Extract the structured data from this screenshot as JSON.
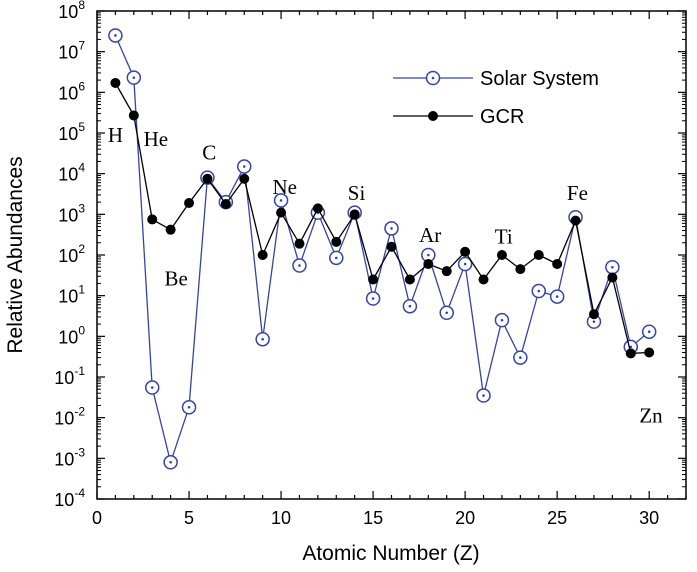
{
  "chart_data": {
    "type": "line",
    "xlabel": "Atomic Number (Z)",
    "ylabel": "Relative Abundances",
    "xlim": [
      0,
      32
    ],
    "ylim_exponents": [
      -4,
      8
    ],
    "y_scale": "log",
    "x_ticks": [
      0,
      5,
      10,
      15,
      20,
      25,
      30
    ],
    "x_minor_step": 1,
    "y_tick_exponents": [
      -4,
      -3,
      -2,
      -1,
      0,
      1,
      2,
      3,
      4,
      5,
      6,
      7,
      8
    ],
    "y_tick_base": "10",
    "grid": false,
    "legend_position": "top-right",
    "x": [
      1,
      2,
      3,
      4,
      5,
      6,
      7,
      8,
      9,
      10,
      11,
      12,
      13,
      14,
      15,
      16,
      17,
      18,
      19,
      20,
      21,
      22,
      23,
      24,
      25,
      26,
      27,
      28,
      29,
      30
    ],
    "series": [
      {
        "name": "Solar System",
        "color": "#3344aa",
        "marker": "open-circle",
        "values": [
          25000000,
          2300000,
          0.055,
          0.0008,
          0.018,
          8000,
          2000,
          15000,
          0.85,
          2200,
          55,
          1100,
          85,
          1100,
          8.5,
          450,
          5.5,
          100,
          3.8,
          60,
          0.035,
          2.5,
          0.3,
          13,
          9.5,
          850,
          2.3,
          50,
          0.55,
          1.3
        ]
      },
      {
        "name": "GCR",
        "color": "#000000",
        "marker": "filled-circle",
        "values": [
          1700000,
          270000,
          750,
          420,
          1900,
          7500,
          1800,
          7500,
          100,
          1100,
          190,
          1400,
          210,
          1000,
          25,
          160,
          25,
          60,
          40,
          120,
          25,
          100,
          45,
          100,
          60,
          700,
          3.5,
          28,
          0.38,
          0.4
        ]
      }
    ],
    "annotations": [
      {
        "text": "H",
        "x": 1,
        "y": 95000
      },
      {
        "text": "He",
        "x": 3.2,
        "y": 75000
      },
      {
        "text": "C",
        "x": 6.1,
        "y": 35000
      },
      {
        "text": "Ne",
        "x": 10.2,
        "y": 5000
      },
      {
        "text": "Si",
        "x": 14.1,
        "y": 3500
      },
      {
        "text": "Be",
        "x": 4.3,
        "y": 28
      },
      {
        "text": "Ar",
        "x": 18.1,
        "y": 330
      },
      {
        "text": "Ti",
        "x": 22.1,
        "y": 300
      },
      {
        "text": "Fe",
        "x": 26.1,
        "y": 3500
      },
      {
        "text": "Zn",
        "x": 30.1,
        "y": 0.012
      }
    ]
  }
}
